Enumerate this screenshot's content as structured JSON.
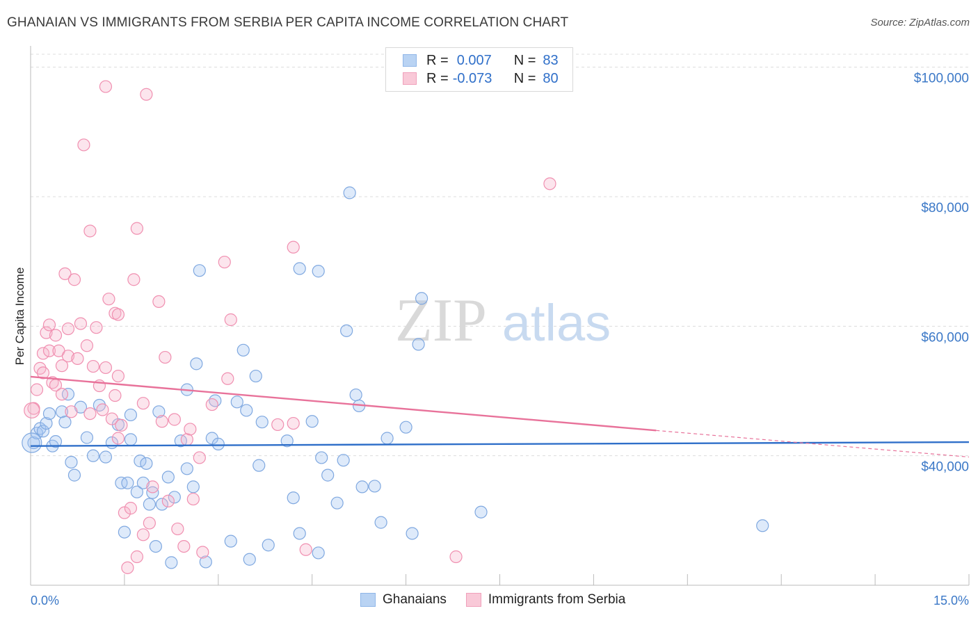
{
  "header": {
    "title": "GHANAIAN VS IMMIGRANTS FROM SERBIA PER CAPITA INCOME CORRELATION CHART",
    "source": "Source: ZipAtlas.com"
  },
  "watermark": {
    "zip": "ZIP",
    "atlas": "atlas"
  },
  "legend": {
    "rows": [
      {
        "r_label": "R =",
        "r_value": "0.007",
        "n_label": "N =",
        "n_value": "83",
        "color": "#8fb6e8",
        "fill": "#b9d3f3"
      },
      {
        "r_label": "R =",
        "r_value": "-0.073",
        "n_label": "N =",
        "n_value": "80",
        "color": "#f0a0bb",
        "fill": "#f9c9d8"
      }
    ]
  },
  "bottom_legend": {
    "items": [
      {
        "label": "Ghanaians",
        "color": "#8fb6e8",
        "fill": "#b9d3f3"
      },
      {
        "label": "Immigrants from Serbia",
        "color": "#f0a0bb",
        "fill": "#f9c9d8"
      }
    ]
  },
  "chart_data": {
    "type": "scatter",
    "ylabel": "Per Capita Income",
    "x_tick_labels": [
      "0.0%",
      "15.0%"
    ],
    "xlim": [
      0,
      15
    ],
    "ylim": [
      20000,
      102000
    ],
    "y_ticks": [
      {
        "value": 40000,
        "label": "$40,000"
      },
      {
        "value": 60000,
        "label": "$60,000"
      },
      {
        "value": 80000,
        "label": "$80,000"
      },
      {
        "value": 100000,
        "label": "$100,000"
      }
    ],
    "grid": true,
    "series": [
      {
        "name": "Ghanaians",
        "stroke": "#7fa8e0",
        "fill": "rgba(160,196,240,0.35)",
        "trend": {
          "x0": 0.0,
          "y0": 41500,
          "x1": 15.0,
          "y1": 42100,
          "color": "#2f6fc9"
        },
        "points": [
          [
            0.05,
            42000
          ],
          [
            0.1,
            43500
          ],
          [
            0.15,
            44200
          ],
          [
            0.2,
            43800
          ],
          [
            0.25,
            45000
          ],
          [
            0.3,
            46500
          ],
          [
            0.35,
            41500
          ],
          [
            0.4,
            42200
          ],
          [
            0.5,
            46800
          ],
          [
            0.55,
            45200
          ],
          [
            0.6,
            49500
          ],
          [
            0.65,
            39000
          ],
          [
            0.7,
            37000
          ],
          [
            0.8,
            47500
          ],
          [
            0.9,
            42800
          ],
          [
            1.0,
            40000
          ],
          [
            1.1,
            47800
          ],
          [
            1.2,
            39800
          ],
          [
            1.3,
            42000
          ],
          [
            1.4,
            44800
          ],
          [
            1.45,
            35800
          ],
          [
            1.5,
            28200
          ],
          [
            1.55,
            35800
          ],
          [
            1.6,
            46300
          ],
          [
            1.6,
            42500
          ],
          [
            1.7,
            34400
          ],
          [
            1.75,
            39200
          ],
          [
            1.8,
            35800
          ],
          [
            1.85,
            38800
          ],
          [
            1.9,
            32500
          ],
          [
            1.95,
            34300
          ],
          [
            2.0,
            26000
          ],
          [
            2.05,
            46800
          ],
          [
            2.1,
            32500
          ],
          [
            2.2,
            36700
          ],
          [
            2.25,
            23500
          ],
          [
            2.3,
            33600
          ],
          [
            2.4,
            42300
          ],
          [
            2.5,
            38000
          ],
          [
            2.5,
            50200
          ],
          [
            2.6,
            35200
          ],
          [
            2.65,
            54200
          ],
          [
            2.7,
            68600
          ],
          [
            2.8,
            23600
          ],
          [
            2.9,
            42700
          ],
          [
            2.95,
            48500
          ],
          [
            3.0,
            41800
          ],
          [
            3.2,
            26800
          ],
          [
            3.3,
            48300
          ],
          [
            3.4,
            56300
          ],
          [
            3.45,
            47000
          ],
          [
            3.5,
            24000
          ],
          [
            3.6,
            52300
          ],
          [
            3.65,
            38500
          ],
          [
            3.7,
            45200
          ],
          [
            3.8,
            26200
          ],
          [
            4.1,
            42300
          ],
          [
            4.2,
            33500
          ],
          [
            4.3,
            28000
          ],
          [
            4.3,
            68900
          ],
          [
            4.5,
            45300
          ],
          [
            4.6,
            25000
          ],
          [
            4.6,
            68500
          ],
          [
            4.65,
            39700
          ],
          [
            4.75,
            37000
          ],
          [
            4.9,
            32700
          ],
          [
            5.0,
            39300
          ],
          [
            5.05,
            59300
          ],
          [
            5.1,
            80600
          ],
          [
            5.2,
            49400
          ],
          [
            5.25,
            47700
          ],
          [
            5.3,
            35200
          ],
          [
            5.5,
            35300
          ],
          [
            5.6,
            29700
          ],
          [
            5.7,
            42700
          ],
          [
            6.0,
            44400
          ],
          [
            6.1,
            28000
          ],
          [
            6.2,
            57200
          ],
          [
            6.25,
            64300
          ],
          [
            7.2,
            31300
          ],
          [
            11.7,
            29200
          ]
        ]
      },
      {
        "name": "Immigrants from Serbia",
        "stroke": "#f08fb0",
        "fill": "rgba(247,180,204,0.35)",
        "trend": {
          "x0": 0.0,
          "y0": 52200,
          "x1": 10.0,
          "y1": 43900,
          "color": "#e8729a",
          "dash_to_x": 15.0,
          "dash_to_y": 39800
        },
        "points": [
          [
            0.05,
            47300
          ],
          [
            0.1,
            50200
          ],
          [
            0.15,
            53500
          ],
          [
            0.2,
            55800
          ],
          [
            0.2,
            52800
          ],
          [
            0.25,
            59000
          ],
          [
            0.3,
            56200
          ],
          [
            0.3,
            60200
          ],
          [
            0.35,
            51300
          ],
          [
            0.4,
            50900
          ],
          [
            0.4,
            58600
          ],
          [
            0.45,
            56200
          ],
          [
            0.5,
            49500
          ],
          [
            0.5,
            53900
          ],
          [
            0.55,
            68100
          ],
          [
            0.6,
            55400
          ],
          [
            0.6,
            59600
          ],
          [
            0.65,
            46800
          ],
          [
            0.7,
            67200
          ],
          [
            0.75,
            55000
          ],
          [
            0.8,
            60400
          ],
          [
            0.85,
            88000
          ],
          [
            0.9,
            57000
          ],
          [
            0.95,
            74700
          ],
          [
            0.95,
            46500
          ],
          [
            1.0,
            53800
          ],
          [
            1.05,
            59800
          ],
          [
            1.1,
            50800
          ],
          [
            1.15,
            47100
          ],
          [
            1.2,
            53600
          ],
          [
            1.2,
            97000
          ],
          [
            1.25,
            64200
          ],
          [
            1.3,
            45700
          ],
          [
            1.35,
            49300
          ],
          [
            1.35,
            62000
          ],
          [
            1.4,
            61800
          ],
          [
            1.4,
            42700
          ],
          [
            1.4,
            52300
          ],
          [
            1.45,
            44700
          ],
          [
            1.5,
            31200
          ],
          [
            1.55,
            22700
          ],
          [
            1.6,
            31900
          ],
          [
            1.65,
            67200
          ],
          [
            1.7,
            75100
          ],
          [
            1.7,
            24400
          ],
          [
            1.8,
            48100
          ],
          [
            1.8,
            27800
          ],
          [
            1.85,
            95800
          ],
          [
            1.9,
            29600
          ],
          [
            1.95,
            35200
          ],
          [
            2.05,
            63800
          ],
          [
            2.1,
            45300
          ],
          [
            2.15,
            55200
          ],
          [
            2.2,
            33000
          ],
          [
            2.3,
            45600
          ],
          [
            2.35,
            28700
          ],
          [
            2.45,
            26000
          ],
          [
            2.5,
            42500
          ],
          [
            2.55,
            44100
          ],
          [
            2.6,
            33300
          ],
          [
            2.7,
            39700
          ],
          [
            2.75,
            25100
          ],
          [
            2.9,
            47900
          ],
          [
            3.1,
            69900
          ],
          [
            3.15,
            51900
          ],
          [
            3.2,
            61000
          ],
          [
            3.95,
            44800
          ],
          [
            4.2,
            72200
          ],
          [
            4.2,
            45000
          ],
          [
            4.4,
            25500
          ],
          [
            6.8,
            24400
          ],
          [
            8.3,
            82000
          ]
        ]
      }
    ]
  }
}
